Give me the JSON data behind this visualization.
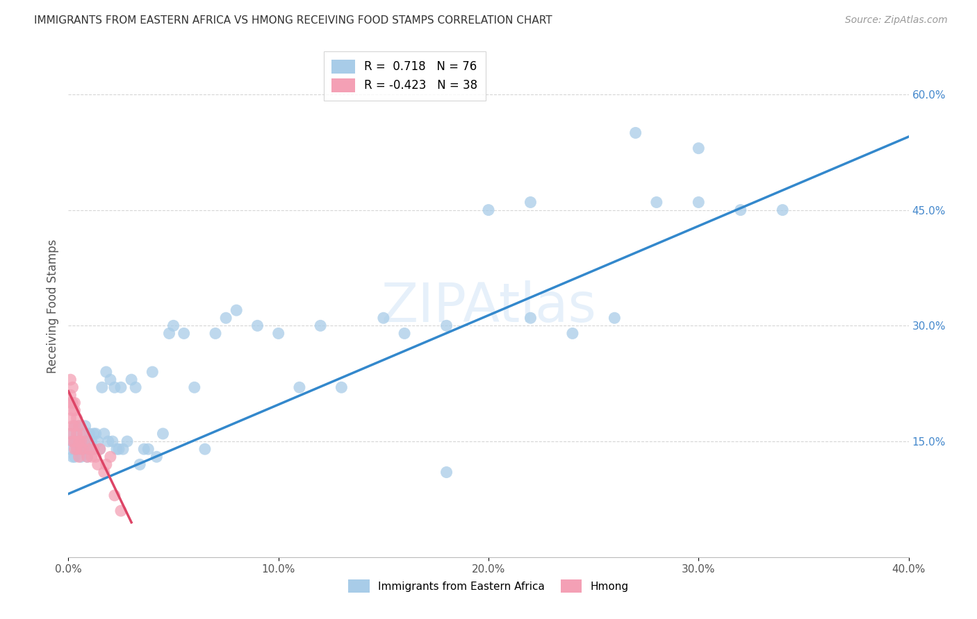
{
  "title": "IMMIGRANTS FROM EASTERN AFRICA VS HMONG RECEIVING FOOD STAMPS CORRELATION CHART",
  "source": "Source: ZipAtlas.com",
  "ylabel_left": "Receiving Food Stamps",
  "ylabel_right_ticks": [
    "15.0%",
    "30.0%",
    "45.0%",
    "60.0%"
  ],
  "legend_label_blue": "Immigrants from Eastern Africa",
  "legend_label_pink": "Hmong",
  "r_blue": 0.718,
  "n_blue": 76,
  "r_pink": -0.423,
  "n_pink": 38,
  "blue_color": "#a8cce8",
  "pink_color": "#f4a0b5",
  "blue_line_color": "#3388cc",
  "pink_line_color": "#dd4466",
  "watermark": "ZIPAtlas",
  "background_color": "#ffffff",
  "grid_color": "#cccccc",
  "title_color": "#333333",
  "source_color": "#999999",
  "axis_label_color": "#555555",
  "right_axis_color": "#4488cc",
  "xlim": [
    0.0,
    0.4
  ],
  "ylim": [
    0.0,
    0.65
  ],
  "blue_scatter_x": [
    0.001,
    0.001,
    0.002,
    0.002,
    0.003,
    0.003,
    0.003,
    0.004,
    0.004,
    0.005,
    0.005,
    0.005,
    0.006,
    0.006,
    0.007,
    0.007,
    0.008,
    0.008,
    0.009,
    0.009,
    0.01,
    0.01,
    0.011,
    0.012,
    0.012,
    0.013,
    0.014,
    0.015,
    0.016,
    0.017,
    0.018,
    0.019,
    0.02,
    0.021,
    0.022,
    0.023,
    0.024,
    0.025,
    0.026,
    0.028,
    0.03,
    0.032,
    0.034,
    0.036,
    0.038,
    0.04,
    0.042,
    0.045,
    0.048,
    0.05,
    0.055,
    0.06,
    0.065,
    0.07,
    0.075,
    0.08,
    0.09,
    0.1,
    0.11,
    0.12,
    0.13,
    0.15,
    0.16,
    0.18,
    0.2,
    0.22,
    0.24,
    0.26,
    0.28,
    0.3,
    0.32,
    0.34,
    0.3,
    0.27,
    0.22,
    0.18
  ],
  "blue_scatter_y": [
    0.14,
    0.16,
    0.13,
    0.15,
    0.13,
    0.15,
    0.17,
    0.14,
    0.16,
    0.14,
    0.15,
    0.17,
    0.15,
    0.13,
    0.16,
    0.14,
    0.15,
    0.17,
    0.15,
    0.13,
    0.16,
    0.14,
    0.15,
    0.16,
    0.14,
    0.16,
    0.15,
    0.14,
    0.22,
    0.16,
    0.24,
    0.15,
    0.23,
    0.15,
    0.22,
    0.14,
    0.14,
    0.22,
    0.14,
    0.15,
    0.23,
    0.22,
    0.12,
    0.14,
    0.14,
    0.24,
    0.13,
    0.16,
    0.29,
    0.3,
    0.29,
    0.22,
    0.14,
    0.29,
    0.31,
    0.32,
    0.3,
    0.29,
    0.22,
    0.3,
    0.22,
    0.31,
    0.29,
    0.3,
    0.45,
    0.31,
    0.29,
    0.31,
    0.46,
    0.46,
    0.45,
    0.45,
    0.53,
    0.55,
    0.46,
    0.11
  ],
  "pink_scatter_x": [
    0.001,
    0.001,
    0.001,
    0.001,
    0.001,
    0.002,
    0.002,
    0.002,
    0.002,
    0.002,
    0.003,
    0.003,
    0.003,
    0.003,
    0.003,
    0.004,
    0.004,
    0.004,
    0.005,
    0.005,
    0.005,
    0.006,
    0.006,
    0.007,
    0.007,
    0.008,
    0.009,
    0.01,
    0.011,
    0.012,
    0.013,
    0.014,
    0.015,
    0.017,
    0.018,
    0.02,
    0.022,
    0.025
  ],
  "pink_scatter_y": [
    0.21,
    0.23,
    0.2,
    0.18,
    0.16,
    0.22,
    0.2,
    0.19,
    0.17,
    0.15,
    0.2,
    0.19,
    0.17,
    0.15,
    0.14,
    0.18,
    0.16,
    0.14,
    0.17,
    0.15,
    0.13,
    0.15,
    0.14,
    0.16,
    0.14,
    0.15,
    0.13,
    0.14,
    0.13,
    0.14,
    0.13,
    0.12,
    0.14,
    0.11,
    0.12,
    0.13,
    0.08,
    0.06
  ],
  "blue_trendline_x0": 0.0,
  "blue_trendline_y0": 0.082,
  "blue_trendline_x1": 0.4,
  "blue_trendline_y1": 0.545,
  "pink_trendline_x0": 0.0,
  "pink_trendline_y0": 0.215,
  "pink_trendline_x1": 0.03,
  "pink_trendline_y1": 0.045
}
